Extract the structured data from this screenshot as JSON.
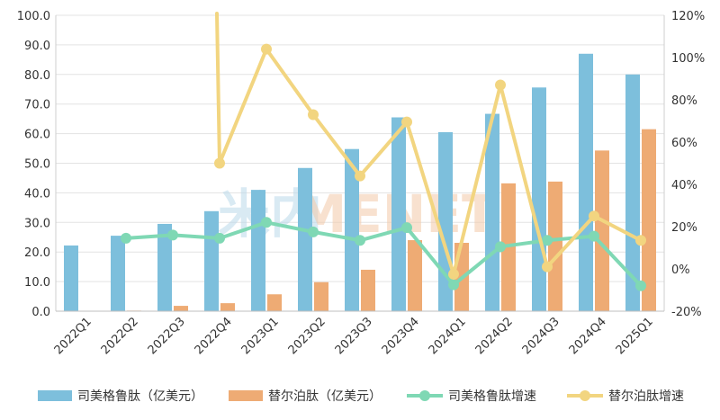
{
  "chart_data": {
    "type": "bar",
    "categories": [
      "2022Q1",
      "2022Q2",
      "2022Q3",
      "2022Q4",
      "2023Q1",
      "2023Q2",
      "2023Q3",
      "2023Q4",
      "2024Q1",
      "2024Q2",
      "2024Q3",
      "2024Q4",
      "2025Q1"
    ],
    "left_axis": {
      "min": 0,
      "max": 100,
      "step": 10,
      "tick_labels": [
        "0.0",
        "10.0",
        "20.0",
        "30.0",
        "40.0",
        "50.0",
        "60.0",
        "70.0",
        "80.0",
        "90.0",
        "100.0"
      ]
    },
    "right_axis": {
      "min": -20,
      "max": 120,
      "step": 20,
      "tick_labels": [
        "-20%",
        "0%",
        "20%",
        "40%",
        "60%",
        "80%",
        "100%",
        "120%"
      ]
    },
    "series": [
      {
        "name": "司美格鲁肽（亿美元）",
        "type": "bar",
        "axis": "left",
        "color": "#7dbfdc",
        "values": [
          22.2,
          25.5,
          29.5,
          33.8,
          41.0,
          48.4,
          54.8,
          65.5,
          60.5,
          66.7,
          75.6,
          87.0,
          80.0
        ]
      },
      {
        "name": "替尔泊肽（亿美元）",
        "type": "bar",
        "axis": "left",
        "color": "#eeab74",
        "values": [
          0,
          0.2,
          1.8,
          2.7,
          5.7,
          9.8,
          14.0,
          24.0,
          23.1,
          43.2,
          43.8,
          54.3,
          61.5
        ]
      },
      {
        "name": "司美格鲁肽增速",
        "type": "line",
        "axis": "right",
        "color": "#7fd8b4",
        "values": [
          null,
          14.5,
          16.0,
          14.5,
          22.0,
          17.5,
          13.5,
          19.5,
          -7.5,
          10.5,
          13.5,
          15.5,
          -8.0
        ]
      },
      {
        "name": "替尔泊肽增速",
        "type": "line",
        "axis": "right",
        "color": "#f2d580",
        "values": [
          null,
          null,
          null,
          50.0,
          104.0,
          73.0,
          44.0,
          69.5,
          -2.5,
          87.0,
          1.0,
          25.0,
          13.5
        ],
        "clipped_above_from": {
          "index": 3
        }
      }
    ],
    "grid": true,
    "legend": "bottom"
  },
  "watermark": {
    "text": "MENET",
    "glyph": "米内"
  }
}
